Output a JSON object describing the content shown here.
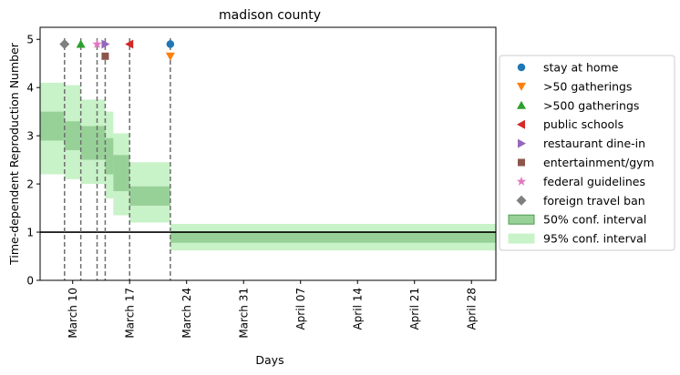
{
  "chart_data": {
    "type": "step-band",
    "title": "madison county",
    "xlabel": "Days",
    "ylabel": "Time-dependent Reproduction Number",
    "x_ticks": [
      {
        "date": "2020-03-10",
        "label": "March 10"
      },
      {
        "date": "2020-03-17",
        "label": "March 17"
      },
      {
        "date": "2020-03-24",
        "label": "March 24"
      },
      {
        "date": "2020-03-31",
        "label": "March 31"
      },
      {
        "date": "2020-04-07",
        "label": "April 07"
      },
      {
        "date": "2020-04-14",
        "label": "April 14"
      },
      {
        "date": "2020-04-21",
        "label": "April 21"
      },
      {
        "date": "2020-04-28",
        "label": "April 28"
      }
    ],
    "y_ticks": [
      "0",
      "1",
      "2",
      "3",
      "4",
      "5"
    ],
    "xlim": [
      "2020-03-06",
      "2020-05-01"
    ],
    "ylim": [
      0,
      5.25
    ],
    "reference_line_y": 1,
    "band_colors": {
      "ci50": "#98d198",
      "ci95": "#c8f2c8",
      "ci50_edge": "#4f9a4f"
    },
    "segments": [
      {
        "start": "2020-03-06",
        "end": "2020-03-09",
        "ci50": [
          2.9,
          3.5
        ],
        "ci95": [
          2.2,
          4.1
        ]
      },
      {
        "start": "2020-03-09",
        "end": "2020-03-11",
        "ci50": [
          2.7,
          3.3
        ],
        "ci95": [
          2.1,
          4.05
        ]
      },
      {
        "start": "2020-03-11",
        "end": "2020-03-14",
        "ci50": [
          2.5,
          3.2
        ],
        "ci95": [
          2.0,
          3.75
        ]
      },
      {
        "start": "2020-03-14",
        "end": "2020-03-15",
        "ci50": [
          2.2,
          2.95
        ],
        "ci95": [
          1.7,
          3.5
        ]
      },
      {
        "start": "2020-03-15",
        "end": "2020-03-17",
        "ci50": [
          1.85,
          2.6
        ],
        "ci95": [
          1.35,
          3.05
        ]
      },
      {
        "start": "2020-03-17",
        "end": "2020-03-22",
        "ci50": [
          1.55,
          1.95
        ],
        "ci95": [
          1.2,
          2.45
        ]
      },
      {
        "start": "2020-03-22",
        "end": "2020-05-01",
        "ci50": [
          0.78,
          1.02
        ],
        "ci95": [
          0.62,
          1.17
        ]
      }
    ],
    "interventions": [
      {
        "name": "stay at home",
        "date": "2020-03-22",
        "y": 4.9,
        "marker": "circle",
        "color": "#1f77b4"
      },
      {
        "name": ">50 gatherings",
        "date": "2020-03-22",
        "y": 4.65,
        "marker": "triangle-down",
        "color": "#ff7f0e"
      },
      {
        "name": ">500 gatherings",
        "date": "2020-03-11",
        "y": 4.9,
        "marker": "triangle-up",
        "color": "#2ca02c"
      },
      {
        "name": "public schools",
        "date": "2020-03-17",
        "y": 4.9,
        "marker": "triangle-left",
        "color": "#d62728"
      },
      {
        "name": "restaurant dine-in",
        "date": "2020-03-14",
        "y": 4.9,
        "marker": "triangle-right",
        "color": "#9467bd"
      },
      {
        "name": "entertainment/gym",
        "date": "2020-03-14",
        "y": 4.65,
        "marker": "square",
        "color": "#8c564b"
      },
      {
        "name": "federal guidelines",
        "date": "2020-03-13",
        "y": 4.9,
        "marker": "star",
        "color": "#e377c2"
      },
      {
        "name": "foreign travel ban",
        "date": "2020-03-09",
        "y": 4.9,
        "marker": "diamond",
        "color": "#7f7f7f"
      }
    ],
    "vlines": [
      "2020-03-09",
      "2020-03-11",
      "2020-03-13",
      "2020-03-14",
      "2020-03-17",
      "2020-03-22"
    ],
    "legend": {
      "placement": "right",
      "band_labels": {
        "ci50": "50% conf. interval",
        "ci95": "95% conf. interval"
      }
    }
  }
}
